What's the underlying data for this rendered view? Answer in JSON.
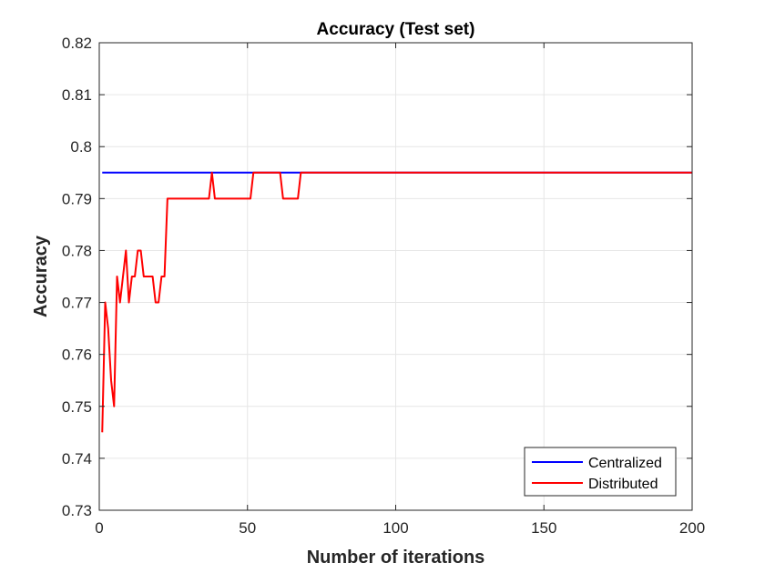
{
  "chart_data": {
    "type": "line",
    "title": "Accuracy (Test set)",
    "xlabel": "Number of iterations",
    "ylabel": "Accuracy",
    "xlim": [
      0,
      200
    ],
    "ylim": [
      0.73,
      0.82
    ],
    "xticks": [
      0,
      50,
      100,
      150,
      200
    ],
    "xtick_labels": [
      "0",
      "50",
      "100",
      "150",
      "200"
    ],
    "yticks": [
      0.73,
      0.74,
      0.75,
      0.76,
      0.77,
      0.78,
      0.79,
      0.8,
      0.81,
      0.82
    ],
    "ytick_labels": [
      "0.73",
      "0.74",
      "0.75",
      "0.76",
      "0.77",
      "0.78",
      "0.79",
      "0.8",
      "0.81",
      "0.82"
    ],
    "grid": true,
    "legend_position": "bottom-right",
    "series": [
      {
        "name": "Centralized",
        "color": "#0000ff",
        "x": [
          1,
          200
        ],
        "y": [
          0.795,
          0.795
        ]
      },
      {
        "name": "Distributed",
        "color": "#ff0000",
        "x": [
          1,
          2,
          3,
          4,
          5,
          6,
          7,
          8,
          9,
          10,
          11,
          12,
          13,
          14,
          15,
          16,
          17,
          18,
          19,
          20,
          21,
          22,
          23,
          24,
          25,
          30,
          35,
          37,
          38,
          39,
          40,
          45,
          50,
          51,
          52,
          55,
          60,
          61,
          62,
          65,
          67,
          68,
          70,
          200
        ],
        "y": [
          0.745,
          0.77,
          0.765,
          0.755,
          0.75,
          0.775,
          0.77,
          0.775,
          0.78,
          0.77,
          0.775,
          0.775,
          0.78,
          0.78,
          0.775,
          0.775,
          0.775,
          0.775,
          0.77,
          0.77,
          0.775,
          0.775,
          0.79,
          0.79,
          0.79,
          0.79,
          0.79,
          0.79,
          0.795,
          0.79,
          0.79,
          0.79,
          0.79,
          0.79,
          0.795,
          0.795,
          0.795,
          0.795,
          0.79,
          0.79,
          0.79,
          0.795,
          0.795,
          0.795
        ]
      }
    ]
  }
}
